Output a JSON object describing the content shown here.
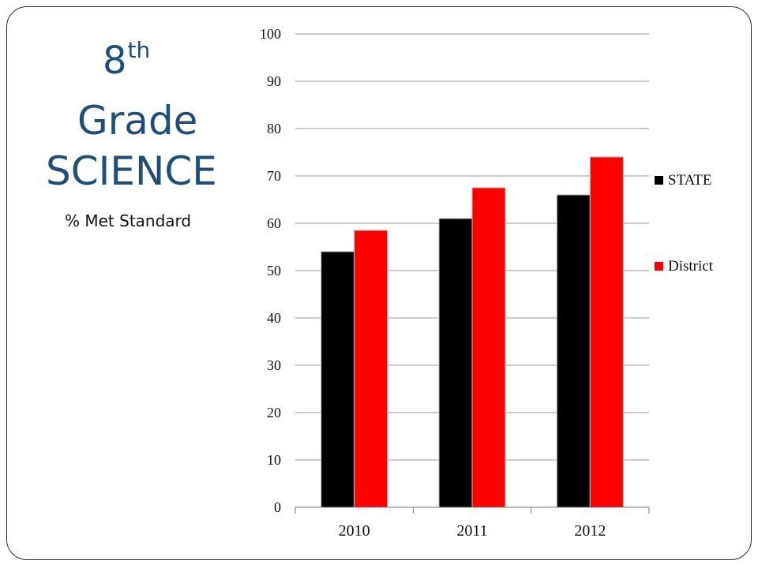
{
  "slide": {
    "title_line1": "8",
    "title_line1_sup": "th",
    "title_line2": "Grade",
    "title_line3": "SCIENCE",
    "subtitle": "% Met Standard"
  },
  "colors": {
    "title": "#1f4e79",
    "state": "#000000",
    "district": "#ff0000"
  },
  "chart_data": {
    "type": "bar",
    "categories": [
      "2010",
      "2011",
      "2012"
    ],
    "series": [
      {
        "name": "STATE",
        "values": [
          54,
          61,
          66
        ],
        "color": "#000000"
      },
      {
        "name": "District",
        "values": [
          58.5,
          67.5,
          74
        ],
        "color": "#ff0000"
      }
    ],
    "ylim": [
      0,
      100
    ],
    "yticks": [
      0,
      10,
      20,
      30,
      40,
      50,
      60,
      70,
      80,
      90,
      100
    ],
    "grid": true,
    "legend": "right",
    "xlabel": "",
    "ylabel": ""
  }
}
